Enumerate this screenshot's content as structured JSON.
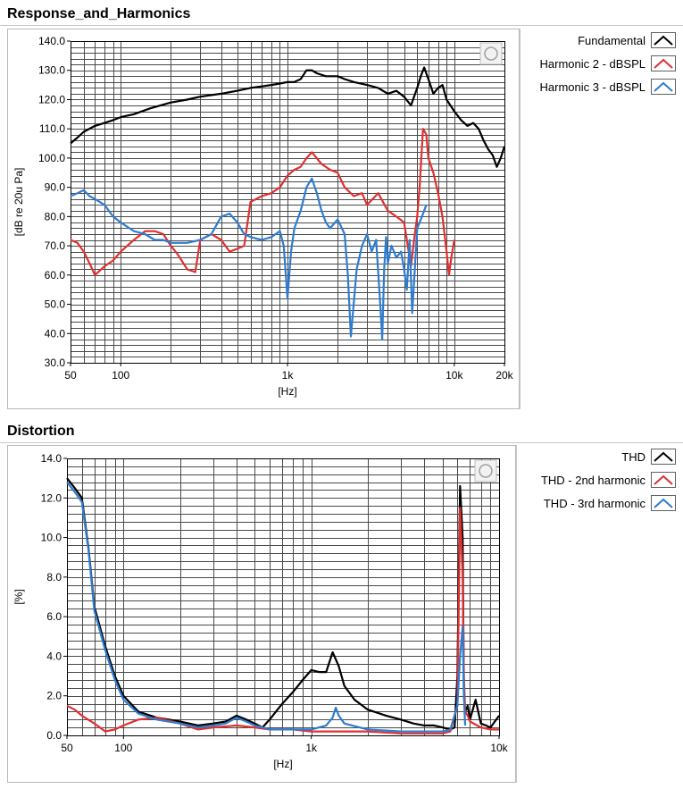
{
  "colors": {
    "fundamental": "#000000",
    "harmonic2": "#e03030",
    "harmonic3": "#2f7ccf",
    "grid": "#4a4a4a"
  },
  "panels": {
    "response": {
      "title": "Response_and_Harmonics"
    },
    "distortion": {
      "title": "Distortion"
    }
  },
  "chart_data": [
    {
      "type": "line",
      "title": "Response_and_Harmonics",
      "xlabel": "[Hz]",
      "ylabel": "[dB re 20u Pa]",
      "xscale": "log",
      "xlim": [
        50,
        20000
      ],
      "ylim": [
        30,
        140
      ],
      "xticks": [
        {
          "v": 50,
          "label": "50"
        },
        {
          "v": 100,
          "label": "100"
        },
        {
          "v": 1000,
          "label": "1k"
        },
        {
          "v": 10000,
          "label": "10k"
        },
        {
          "v": 20000,
          "label": "20k"
        }
      ],
      "yticks": [
        {
          "v": 30,
          "label": "30.0"
        },
        {
          "v": 40,
          "label": "40.0"
        },
        {
          "v": 50,
          "label": "50.0"
        },
        {
          "v": 60,
          "label": "60.0"
        },
        {
          "v": 70,
          "label": "70.0"
        },
        {
          "v": 80,
          "label": "80.0"
        },
        {
          "v": 90,
          "label": "90.0"
        },
        {
          "v": 100,
          "label": "100.0"
        },
        {
          "v": 110,
          "label": "110.0"
        },
        {
          "v": 120,
          "label": "120.0"
        },
        {
          "v": 130,
          "label": "130.0"
        },
        {
          "v": 140,
          "label": "140.0"
        }
      ],
      "grid": true,
      "legend_position": "right",
      "series": [
        {
          "name": "Fundamental",
          "color_key": "fundamental",
          "x": [
            50,
            55,
            60,
            70,
            80,
            90,
            100,
            120,
            150,
            200,
            250,
            300,
            400,
            500,
            600,
            700,
            800,
            900,
            1000,
            1100,
            1200,
            1300,
            1400,
            1500,
            1700,
            2000,
            2200,
            2500,
            3000,
            3500,
            4000,
            4500,
            5000,
            5500,
            6000,
            6300,
            6600,
            7000,
            7500,
            8000,
            8500,
            9000,
            10000,
            11000,
            12000,
            13000,
            14000,
            15000,
            16000,
            17000,
            18000,
            19000,
            20000
          ],
          "y": [
            105,
            107,
            109,
            111,
            112,
            113,
            114,
            115,
            117,
            119,
            120,
            121,
            122,
            123,
            124,
            124.5,
            125,
            125.5,
            126,
            126,
            127,
            130,
            130,
            129,
            128,
            128,
            127,
            126,
            125,
            124,
            122,
            123,
            121,
            118,
            124,
            128,
            131,
            127,
            122,
            124,
            125,
            120,
            116,
            113,
            111,
            112,
            110,
            106,
            103,
            101,
            97,
            100,
            104
          ]
        },
        {
          "name": "Harmonic 2 - dBSPL",
          "color_key": "harmonic2",
          "x": [
            50,
            55,
            60,
            65,
            70,
            80,
            90,
            100,
            120,
            140,
            160,
            180,
            200,
            220,
            250,
            280,
            300,
            350,
            400,
            450,
            500,
            550,
            600,
            700,
            800,
            900,
            1000,
            1100,
            1200,
            1300,
            1400,
            1600,
            1800,
            2000,
            2200,
            2500,
            2800,
            3000,
            3500,
            4000,
            4500,
            5000,
            5200,
            5500,
            5800,
            6000,
            6200,
            6500,
            6800,
            7000,
            7500,
            8000,
            8500,
            9000,
            9300,
            9600,
            10000
          ],
          "y": [
            72,
            71,
            68,
            64,
            60,
            63,
            65,
            68,
            72,
            75,
            75,
            74,
            70,
            67,
            62,
            61,
            72,
            74,
            72,
            68,
            69,
            70,
            85,
            87,
            88,
            90,
            94,
            96,
            97,
            100,
            102,
            98,
            96,
            95,
            90,
            87,
            88,
            84,
            88,
            82,
            80,
            78,
            72,
            63,
            74,
            80,
            90,
            110,
            108,
            100,
            95,
            88,
            80,
            68,
            60,
            66,
            72
          ]
        },
        {
          "name": "Harmonic 3 - dBSPL",
          "color_key": "harmonic3",
          "x": [
            50,
            55,
            60,
            65,
            70,
            80,
            90,
            100,
            120,
            140,
            160,
            180,
            200,
            250,
            300,
            350,
            400,
            450,
            500,
            550,
            600,
            700,
            800,
            900,
            950,
            1000,
            1050,
            1100,
            1200,
            1300,
            1400,
            1500,
            1600,
            1700,
            1800,
            2000,
            2200,
            2300,
            2400,
            2600,
            2800,
            3000,
            3200,
            3400,
            3600,
            3700,
            3800,
            3900,
            4000,
            4200,
            4500,
            4800,
            5000,
            5200,
            5400,
            5600,
            5800,
            6000,
            6200,
            6400,
            6600,
            6800
          ],
          "y": [
            87,
            88,
            89,
            87,
            86,
            84,
            80,
            78,
            75,
            74,
            72,
            72,
            71,
            71,
            72,
            74,
            80,
            81,
            78,
            74,
            73,
            72,
            73,
            75,
            70,
            52,
            68,
            76,
            82,
            90,
            93,
            88,
            82,
            78,
            76,
            79,
            74,
            60,
            39,
            62,
            70,
            74,
            68,
            72,
            50,
            38,
            62,
            73,
            64,
            70,
            66,
            68,
            62,
            55,
            72,
            47,
            62,
            76,
            78,
            80,
            82,
            84
          ]
        }
      ]
    },
    {
      "type": "line",
      "title": "Distortion",
      "xlabel": "[Hz]",
      "ylabel": "[%]",
      "xscale": "log",
      "xlim": [
        50,
        10000
      ],
      "ylim": [
        0,
        14
      ],
      "xticks": [
        {
          "v": 50,
          "label": "50"
        },
        {
          "v": 100,
          "label": "100"
        },
        {
          "v": 1000,
          "label": "1k"
        },
        {
          "v": 10000,
          "label": "10k"
        }
      ],
      "yticks": [
        {
          "v": 0,
          "label": "0.0"
        },
        {
          "v": 2,
          "label": "2.0"
        },
        {
          "v": 4,
          "label": "4.0"
        },
        {
          "v": 6,
          "label": "6.0"
        },
        {
          "v": 8,
          "label": "8.0"
        },
        {
          "v": 10,
          "label": "10.0"
        },
        {
          "v": 12,
          "label": "12.0"
        },
        {
          "v": 14,
          "label": "14.0"
        }
      ],
      "grid": true,
      "legend_position": "right",
      "series": [
        {
          "name": "THD",
          "color_key": "fundamental",
          "x": [
            50,
            55,
            60,
            65,
            70,
            80,
            90,
            100,
            120,
            150,
            200,
            250,
            300,
            350,
            400,
            450,
            500,
            550,
            600,
            700,
            800,
            900,
            1000,
            1100,
            1200,
            1300,
            1400,
            1500,
            1700,
            2000,
            2500,
            3000,
            3500,
            4000,
            4500,
            5000,
            5500,
            5800,
            6000,
            6200,
            6400,
            6500,
            6600,
            6800,
            7000,
            7500,
            8000,
            8500,
            9000,
            10000
          ],
          "y": [
            13,
            12.5,
            12,
            9.5,
            6.5,
            4.5,
            3,
            2,
            1.2,
            0.9,
            0.7,
            0.5,
            0.6,
            0.7,
            1,
            0.8,
            0.6,
            0.4,
            0.8,
            1.6,
            2.2,
            2.8,
            3.3,
            3.2,
            3.2,
            4.2,
            3.5,
            2.5,
            1.8,
            1.3,
            1.0,
            0.8,
            0.6,
            0.5,
            0.5,
            0.4,
            0.3,
            0.4,
            3,
            12.6,
            10,
            2,
            1.2,
            1.5,
            0.8,
            1.8,
            0.6,
            0.5,
            0.4,
            1.0
          ]
        },
        {
          "name": "THD - 2nd harmonic",
          "color_key": "harmonic2",
          "x": [
            50,
            55,
            60,
            70,
            80,
            90,
            100,
            120,
            150,
            200,
            250,
            300,
            400,
            500,
            600,
            700,
            800,
            1000,
            1300,
            1500,
            2000,
            3000,
            4000,
            5000,
            5500,
            6000,
            6200,
            6400,
            6500,
            6600,
            6800,
            7000,
            8000,
            9000,
            10000
          ],
          "y": [
            1.5,
            1.3,
            1.0,
            0.6,
            0.2,
            0.3,
            0.5,
            0.8,
            0.9,
            0.6,
            0.3,
            0.4,
            0.5,
            0.4,
            0.3,
            0.3,
            0.3,
            0.2,
            0.2,
            0.2,
            0.2,
            0.1,
            0.1,
            0.1,
            0.2,
            1.5,
            11.5,
            8,
            3,
            1.2,
            1.0,
            0.7,
            0.4,
            0.3,
            0.3
          ]
        },
        {
          "name": "THD - 3rd harmonic",
          "color_key": "harmonic3",
          "x": [
            50,
            55,
            60,
            65,
            70,
            80,
            90,
            100,
            120,
            150,
            200,
            250,
            300,
            350,
            400,
            450,
            500,
            550,
            600,
            700,
            800,
            1000,
            1200,
            1300,
            1350,
            1400,
            1500,
            2000,
            3000,
            4000,
            5000,
            5500,
            6000,
            6200,
            6400,
            6500,
            6600
          ],
          "y": [
            12.8,
            12.3,
            11.8,
            9.4,
            6.3,
            4.3,
            2.8,
            1.8,
            1.1,
            0.8,
            0.6,
            0.4,
            0.5,
            0.6,
            0.9,
            0.7,
            0.5,
            0.4,
            0.3,
            0.3,
            0.3,
            0.3,
            0.5,
            0.9,
            1.4,
            1.0,
            0.6,
            0.3,
            0.2,
            0.2,
            0.2,
            0.3,
            1.5,
            4,
            5.5,
            2,
            0.5
          ]
        }
      ]
    }
  ]
}
